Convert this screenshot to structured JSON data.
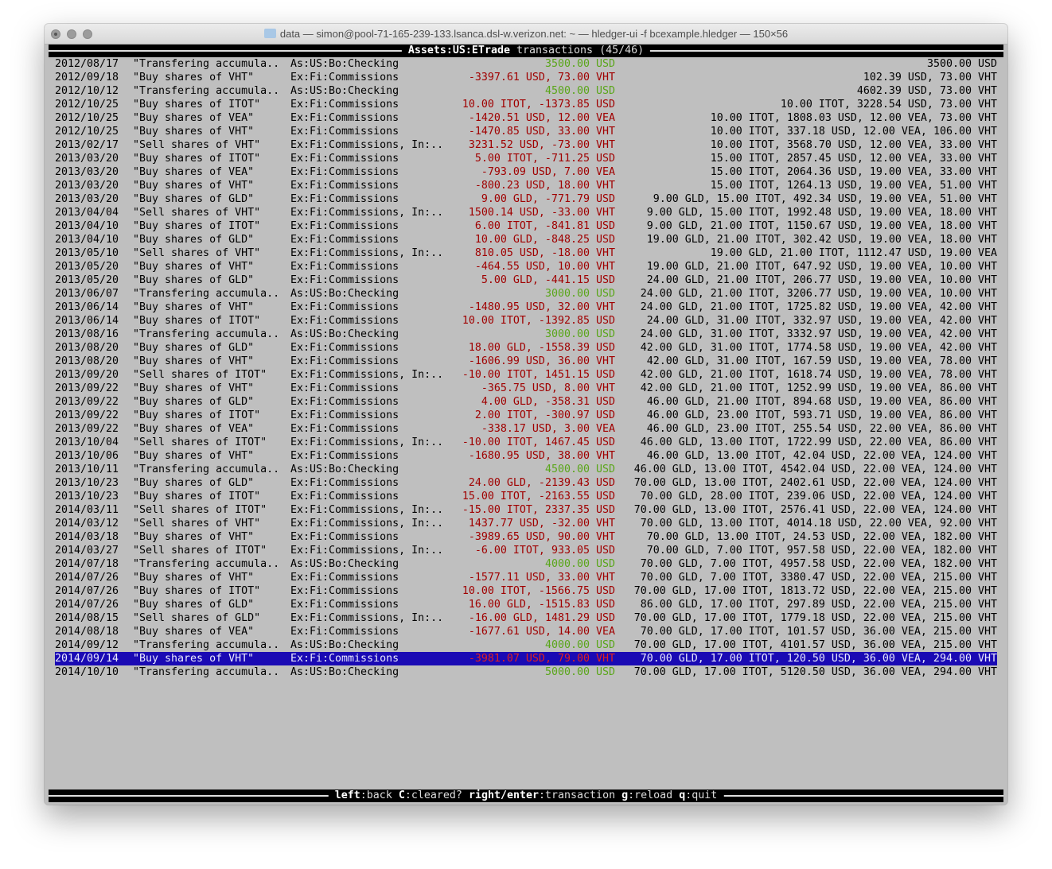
{
  "window": {
    "title": "data — simon@pool-71-165-239-133.lsanca.dsl-w.verizon.net: ~ — hledger-ui -f bcexample.hledger — 150×56"
  },
  "header": {
    "account": "Assets:US:ETrade",
    "label": "transactions",
    "count": "(45/46)"
  },
  "colors": {
    "positive": "#5aa61a",
    "negative": "#a00000",
    "selection": "#1a0ab4",
    "background": "#bfbfbf"
  },
  "selected_index": 44,
  "rows": [
    {
      "date": "2012/08/17",
      "desc": "\"Transfering accumula..",
      "acct": "As:US:Bo:Checking",
      "chg": "3500.00 USD",
      "pos": true,
      "bal": "3500.00 USD"
    },
    {
      "date": "2012/09/18",
      "desc": "\"Buy shares of VHT\"",
      "acct": "Ex:Fi:Commissions",
      "chg": "-3397.61 USD, 73.00 VHT",
      "pos": false,
      "bal": "102.39 USD, 73.00 VHT"
    },
    {
      "date": "2012/10/12",
      "desc": "\"Transfering accumula..",
      "acct": "As:US:Bo:Checking",
      "chg": "4500.00 USD",
      "pos": true,
      "bal": "4602.39 USD, 73.00 VHT"
    },
    {
      "date": "2012/10/25",
      "desc": "\"Buy shares of ITOT\"",
      "acct": "Ex:Fi:Commissions",
      "chg": "10.00 ITOT, -1373.85 USD",
      "pos": false,
      "bal": "10.00 ITOT, 3228.54 USD, 73.00 VHT"
    },
    {
      "date": "2012/10/25",
      "desc": "\"Buy shares of VEA\"",
      "acct": "Ex:Fi:Commissions",
      "chg": "-1420.51 USD, 12.00 VEA",
      "pos": false,
      "bal": "10.00 ITOT, 1808.03 USD, 12.00 VEA, 73.00 VHT"
    },
    {
      "date": "2012/10/25",
      "desc": "\"Buy shares of VHT\"",
      "acct": "Ex:Fi:Commissions",
      "chg": "-1470.85 USD, 33.00 VHT",
      "pos": false,
      "bal": "10.00 ITOT, 337.18 USD, 12.00 VEA, 106.00 VHT"
    },
    {
      "date": "2013/02/17",
      "desc": "\"Sell shares of VHT\"",
      "acct": "Ex:Fi:Commissions, In:..",
      "chg": "3231.52 USD, -73.00 VHT",
      "pos": false,
      "bal": "10.00 ITOT, 3568.70 USD, 12.00 VEA, 33.00 VHT"
    },
    {
      "date": "2013/03/20",
      "desc": "\"Buy shares of ITOT\"",
      "acct": "Ex:Fi:Commissions",
      "chg": "5.00 ITOT, -711.25 USD",
      "pos": false,
      "bal": "15.00 ITOT, 2857.45 USD, 12.00 VEA, 33.00 VHT"
    },
    {
      "date": "2013/03/20",
      "desc": "\"Buy shares of VEA\"",
      "acct": "Ex:Fi:Commissions",
      "chg": "-793.09 USD, 7.00 VEA",
      "pos": false,
      "bal": "15.00 ITOT, 2064.36 USD, 19.00 VEA, 33.00 VHT"
    },
    {
      "date": "2013/03/20",
      "desc": "\"Buy shares of VHT\"",
      "acct": "Ex:Fi:Commissions",
      "chg": "-800.23 USD, 18.00 VHT",
      "pos": false,
      "bal": "15.00 ITOT, 1264.13 USD, 19.00 VEA, 51.00 VHT"
    },
    {
      "date": "2013/03/20",
      "desc": "\"Buy shares of GLD\"",
      "acct": "Ex:Fi:Commissions",
      "chg": "9.00 GLD, -771.79 USD",
      "pos": false,
      "bal": "9.00 GLD, 15.00 ITOT, 492.34 USD, 19.00 VEA, 51.00 VHT"
    },
    {
      "date": "2013/04/04",
      "desc": "\"Sell shares of VHT\"",
      "acct": "Ex:Fi:Commissions, In:..",
      "chg": "1500.14 USD, -33.00 VHT",
      "pos": false,
      "bal": "9.00 GLD, 15.00 ITOT, 1992.48 USD, 19.00 VEA, 18.00 VHT"
    },
    {
      "date": "2013/04/10",
      "desc": "\"Buy shares of ITOT\"",
      "acct": "Ex:Fi:Commissions",
      "chg": "6.00 ITOT, -841.81 USD",
      "pos": false,
      "bal": "9.00 GLD, 21.00 ITOT, 1150.67 USD, 19.00 VEA, 18.00 VHT"
    },
    {
      "date": "2013/04/10",
      "desc": "\"Buy shares of GLD\"",
      "acct": "Ex:Fi:Commissions",
      "chg": "10.00 GLD, -848.25 USD",
      "pos": false,
      "bal": "19.00 GLD, 21.00 ITOT, 302.42 USD, 19.00 VEA, 18.00 VHT"
    },
    {
      "date": "2013/05/10",
      "desc": "\"Sell shares of VHT\"",
      "acct": "Ex:Fi:Commissions, In:..",
      "chg": "810.05 USD, -18.00 VHT",
      "pos": false,
      "bal": "19.00 GLD, 21.00 ITOT, 1112.47 USD, 19.00 VEA"
    },
    {
      "date": "2013/05/20",
      "desc": "\"Buy shares of VHT\"",
      "acct": "Ex:Fi:Commissions",
      "chg": "-464.55 USD, 10.00 VHT",
      "pos": false,
      "bal": "19.00 GLD, 21.00 ITOT, 647.92 USD, 19.00 VEA, 10.00 VHT"
    },
    {
      "date": "2013/05/20",
      "desc": "\"Buy shares of GLD\"",
      "acct": "Ex:Fi:Commissions",
      "chg": "5.00 GLD, -441.15 USD",
      "pos": false,
      "bal": "24.00 GLD, 21.00 ITOT, 206.77 USD, 19.00 VEA, 10.00 VHT"
    },
    {
      "date": "2013/06/07",
      "desc": "\"Transfering accumula..",
      "acct": "As:US:Bo:Checking",
      "chg": "3000.00 USD",
      "pos": true,
      "bal": "24.00 GLD, 21.00 ITOT, 3206.77 USD, 19.00 VEA, 10.00 VHT"
    },
    {
      "date": "2013/06/14",
      "desc": "\"Buy shares of VHT\"",
      "acct": "Ex:Fi:Commissions",
      "chg": "-1480.95 USD, 32.00 VHT",
      "pos": false,
      "bal": "24.00 GLD, 21.00 ITOT, 1725.82 USD, 19.00 VEA, 42.00 VHT"
    },
    {
      "date": "2013/06/14",
      "desc": "\"Buy shares of ITOT\"",
      "acct": "Ex:Fi:Commissions",
      "chg": "10.00 ITOT, -1392.85 USD",
      "pos": false,
      "bal": "24.00 GLD, 31.00 ITOT, 332.97 USD, 19.00 VEA, 42.00 VHT"
    },
    {
      "date": "2013/08/16",
      "desc": "\"Transfering accumula..",
      "acct": "As:US:Bo:Checking",
      "chg": "3000.00 USD",
      "pos": true,
      "bal": "24.00 GLD, 31.00 ITOT, 3332.97 USD, 19.00 VEA, 42.00 VHT"
    },
    {
      "date": "2013/08/20",
      "desc": "\"Buy shares of GLD\"",
      "acct": "Ex:Fi:Commissions",
      "chg": "18.00 GLD, -1558.39 USD",
      "pos": false,
      "bal": "42.00 GLD, 31.00 ITOT, 1774.58 USD, 19.00 VEA, 42.00 VHT"
    },
    {
      "date": "2013/08/20",
      "desc": "\"Buy shares of VHT\"",
      "acct": "Ex:Fi:Commissions",
      "chg": "-1606.99 USD, 36.00 VHT",
      "pos": false,
      "bal": "42.00 GLD, 31.00 ITOT, 167.59 USD, 19.00 VEA, 78.00 VHT"
    },
    {
      "date": "2013/09/20",
      "desc": "\"Sell shares of ITOT\"",
      "acct": "Ex:Fi:Commissions, In:..",
      "chg": "-10.00 ITOT, 1451.15 USD",
      "pos": false,
      "bal": "42.00 GLD, 21.00 ITOT, 1618.74 USD, 19.00 VEA, 78.00 VHT"
    },
    {
      "date": "2013/09/22",
      "desc": "\"Buy shares of VHT\"",
      "acct": "Ex:Fi:Commissions",
      "chg": "-365.75 USD, 8.00 VHT",
      "pos": false,
      "bal": "42.00 GLD, 21.00 ITOT, 1252.99 USD, 19.00 VEA, 86.00 VHT"
    },
    {
      "date": "2013/09/22",
      "desc": "\"Buy shares of GLD\"",
      "acct": "Ex:Fi:Commissions",
      "chg": "4.00 GLD, -358.31 USD",
      "pos": false,
      "bal": "46.00 GLD, 21.00 ITOT, 894.68 USD, 19.00 VEA, 86.00 VHT"
    },
    {
      "date": "2013/09/22",
      "desc": "\"Buy shares of ITOT\"",
      "acct": "Ex:Fi:Commissions",
      "chg": "2.00 ITOT, -300.97 USD",
      "pos": false,
      "bal": "46.00 GLD, 23.00 ITOT, 593.71 USD, 19.00 VEA, 86.00 VHT"
    },
    {
      "date": "2013/09/22",
      "desc": "\"Buy shares of VEA\"",
      "acct": "Ex:Fi:Commissions",
      "chg": "-338.17 USD, 3.00 VEA",
      "pos": false,
      "bal": "46.00 GLD, 23.00 ITOT, 255.54 USD, 22.00 VEA, 86.00 VHT"
    },
    {
      "date": "2013/10/04",
      "desc": "\"Sell shares of ITOT\"",
      "acct": "Ex:Fi:Commissions, In:..",
      "chg": "-10.00 ITOT, 1467.45 USD",
      "pos": false,
      "bal": "46.00 GLD, 13.00 ITOT, 1722.99 USD, 22.00 VEA, 86.00 VHT"
    },
    {
      "date": "2013/10/06",
      "desc": "\"Buy shares of VHT\"",
      "acct": "Ex:Fi:Commissions",
      "chg": "-1680.95 USD, 38.00 VHT",
      "pos": false,
      "bal": "46.00 GLD, 13.00 ITOT, 42.04 USD, 22.00 VEA, 124.00 VHT"
    },
    {
      "date": "2013/10/11",
      "desc": "\"Transfering accumula..",
      "acct": "As:US:Bo:Checking",
      "chg": "4500.00 USD",
      "pos": true,
      "bal": "46.00 GLD, 13.00 ITOT, 4542.04 USD, 22.00 VEA, 124.00 VHT"
    },
    {
      "date": "2013/10/23",
      "desc": "\"Buy shares of GLD\"",
      "acct": "Ex:Fi:Commissions",
      "chg": "24.00 GLD, -2139.43 USD",
      "pos": false,
      "bal": "70.00 GLD, 13.00 ITOT, 2402.61 USD, 22.00 VEA, 124.00 VHT"
    },
    {
      "date": "2013/10/23",
      "desc": "\"Buy shares of ITOT\"",
      "acct": "Ex:Fi:Commissions",
      "chg": "15.00 ITOT, -2163.55 USD",
      "pos": false,
      "bal": "70.00 GLD, 28.00 ITOT, 239.06 USD, 22.00 VEA, 124.00 VHT"
    },
    {
      "date": "2014/03/11",
      "desc": "\"Sell shares of ITOT\"",
      "acct": "Ex:Fi:Commissions, In:..",
      "chg": "-15.00 ITOT, 2337.35 USD",
      "pos": false,
      "bal": "70.00 GLD, 13.00 ITOT, 2576.41 USD, 22.00 VEA, 124.00 VHT"
    },
    {
      "date": "2014/03/12",
      "desc": "\"Sell shares of VHT\"",
      "acct": "Ex:Fi:Commissions, In:..",
      "chg": "1437.77 USD, -32.00 VHT",
      "pos": false,
      "bal": "70.00 GLD, 13.00 ITOT, 4014.18 USD, 22.00 VEA, 92.00 VHT"
    },
    {
      "date": "2014/03/18",
      "desc": "\"Buy shares of VHT\"",
      "acct": "Ex:Fi:Commissions",
      "chg": "-3989.65 USD, 90.00 VHT",
      "pos": false,
      "bal": "70.00 GLD, 13.00 ITOT, 24.53 USD, 22.00 VEA, 182.00 VHT"
    },
    {
      "date": "2014/03/27",
      "desc": "\"Sell shares of ITOT\"",
      "acct": "Ex:Fi:Commissions, In:..",
      "chg": "-6.00 ITOT, 933.05 USD",
      "pos": false,
      "bal": "70.00 GLD, 7.00 ITOT, 957.58 USD, 22.00 VEA, 182.00 VHT"
    },
    {
      "date": "2014/07/18",
      "desc": "\"Transfering accumula..",
      "acct": "As:US:Bo:Checking",
      "chg": "4000.00 USD",
      "pos": true,
      "bal": "70.00 GLD, 7.00 ITOT, 4957.58 USD, 22.00 VEA, 182.00 VHT"
    },
    {
      "date": "2014/07/26",
      "desc": "\"Buy shares of VHT\"",
      "acct": "Ex:Fi:Commissions",
      "chg": "-1577.11 USD, 33.00 VHT",
      "pos": false,
      "bal": "70.00 GLD, 7.00 ITOT, 3380.47 USD, 22.00 VEA, 215.00 VHT"
    },
    {
      "date": "2014/07/26",
      "desc": "\"Buy shares of ITOT\"",
      "acct": "Ex:Fi:Commissions",
      "chg": "10.00 ITOT, -1566.75 USD",
      "pos": false,
      "bal": "70.00 GLD, 17.00 ITOT, 1813.72 USD, 22.00 VEA, 215.00 VHT"
    },
    {
      "date": "2014/07/26",
      "desc": "\"Buy shares of GLD\"",
      "acct": "Ex:Fi:Commissions",
      "chg": "16.00 GLD, -1515.83 USD",
      "pos": false,
      "bal": "86.00 GLD, 17.00 ITOT, 297.89 USD, 22.00 VEA, 215.00 VHT"
    },
    {
      "date": "2014/08/15",
      "desc": "\"Sell shares of GLD\"",
      "acct": "Ex:Fi:Commissions, In:..",
      "chg": "-16.00 GLD, 1481.29 USD",
      "pos": false,
      "bal": "70.00 GLD, 17.00 ITOT, 1779.18 USD, 22.00 VEA, 215.00 VHT"
    },
    {
      "date": "2014/08/18",
      "desc": "\"Buy shares of VEA\"",
      "acct": "Ex:Fi:Commissions",
      "chg": "-1677.61 USD, 14.00 VEA",
      "pos": false,
      "bal": "70.00 GLD, 17.00 ITOT, 101.57 USD, 36.00 VEA, 215.00 VHT"
    },
    {
      "date": "2014/09/12",
      "desc": "\"Transfering accumula..",
      "acct": "As:US:Bo:Checking",
      "chg": "4000.00 USD",
      "pos": true,
      "bal": "70.00 GLD, 17.00 ITOT, 4101.57 USD, 36.00 VEA, 215.00 VHT"
    },
    {
      "date": "2014/09/14",
      "desc": "\"Buy shares of VHT\"",
      "acct": "Ex:Fi:Commissions",
      "chg": "-3981.07 USD, 79.00 VHT",
      "pos": false,
      "bal": "70.00 GLD, 17.00 ITOT, 120.50 USD, 36.00 VEA, 294.00 VHT"
    },
    {
      "date": "2014/10/10",
      "desc": "\"Transfering accumula..",
      "acct": "As:US:Bo:Checking",
      "chg": "5000.00 USD",
      "pos": true,
      "bal": "70.00 GLD, 17.00 ITOT, 5120.50 USD, 36.00 VEA, 294.00 VHT"
    }
  ],
  "footer": {
    "keys": [
      {
        "key": "left",
        "action": "back"
      },
      {
        "key": "C",
        "action": "cleared?"
      },
      {
        "key": "right/enter",
        "action": "transaction"
      },
      {
        "key": "g",
        "action": "reload"
      },
      {
        "key": "q",
        "action": "quit"
      }
    ]
  }
}
